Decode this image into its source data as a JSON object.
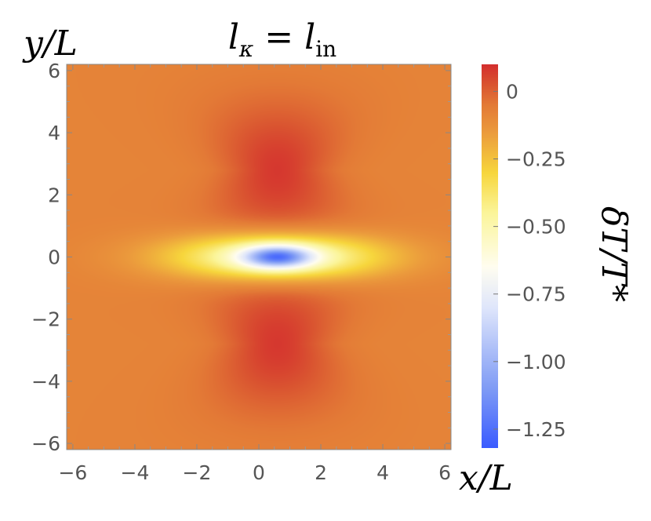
{
  "chart_data": {
    "type": "heatmap",
    "title": "l_κ = l_in",
    "title_parts": {
      "main": "l",
      "sub": "κ",
      "eq": " = ",
      "main2": "l",
      "sub2": "in"
    },
    "xlabel": "x/L",
    "ylabel": "y/L",
    "colorbar_label": "δT/T*",
    "xlim": [
      -6.2,
      6.2
    ],
    "ylim": [
      -6.2,
      6.2
    ],
    "x_ticks": [
      {
        "value": -6,
        "label": "−6"
      },
      {
        "value": -4,
        "label": "−4"
      },
      {
        "value": -2,
        "label": "−2"
      },
      {
        "value": 0,
        "label": "0"
      },
      {
        "value": 2,
        "label": "2"
      },
      {
        "value": 4,
        "label": "4"
      },
      {
        "value": 6,
        "label": "6"
      }
    ],
    "y_ticks": [
      {
        "value": -6,
        "label": "−6"
      },
      {
        "value": -4,
        "label": "−4"
      },
      {
        "value": -2,
        "label": "−2"
      },
      {
        "value": 0,
        "label": "0"
      },
      {
        "value": 2,
        "label": "2"
      },
      {
        "value": 4,
        "label": "4"
      },
      {
        "value": 6,
        "label": "6"
      }
    ],
    "colorbar_range": [
      -1.32,
      0.1
    ],
    "colorbar_ticks": [
      {
        "value": 0,
        "label": "0"
      },
      {
        "value": -0.25,
        "label": "−0.25"
      },
      {
        "value": -0.5,
        "label": "−0.50"
      },
      {
        "value": -0.75,
        "label": "−0.75"
      },
      {
        "value": -1.0,
        "label": "−1.00"
      },
      {
        "value": -1.25,
        "label": "−1.25"
      }
    ],
    "colormap": [
      {
        "value": -1.32,
        "color": "#3a5bff"
      },
      {
        "value": -1.1,
        "color": "#7f9bf5"
      },
      {
        "value": -0.8,
        "color": "#dfe6fb"
      },
      {
        "value": -0.65,
        "color": "#fffdf0"
      },
      {
        "value": -0.45,
        "color": "#fbf59a"
      },
      {
        "value": -0.3,
        "color": "#f7d63c"
      },
      {
        "value": -0.15,
        "color": "#eb9a3c"
      },
      {
        "value": -0.05,
        "color": "#e37a36"
      },
      {
        "value": 0.03,
        "color": "#d95230"
      },
      {
        "value": 0.1,
        "color": "#d42e2e"
      }
    ],
    "field_features": {
      "background_value": -0.08,
      "cold_spot": {
        "center": [
          0.6,
          0.0
        ],
        "min_value": -1.3
      },
      "hot_lobes": [
        {
          "center": [
            0.6,
            2.8
          ],
          "max_value": 0.08
        },
        {
          "center": [
            0.6,
            -2.8
          ],
          "max_value": 0.08
        }
      ]
    }
  }
}
